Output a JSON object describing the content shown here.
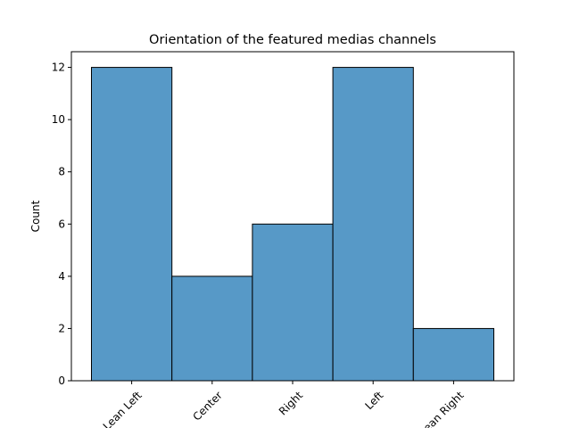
{
  "chart_data": {
    "type": "bar",
    "title": "Orientation of the featured medias channels",
    "xlabel": "",
    "ylabel": "Count",
    "categories": [
      "Lean Left",
      "Center",
      "Right",
      "Left",
      "Lean Right"
    ],
    "values": [
      12,
      4,
      6,
      12,
      2
    ],
    "ylim": [
      0,
      12.6
    ],
    "yticks": [
      0,
      2,
      4,
      6,
      8,
      10,
      12
    ],
    "grid": false,
    "legend": "none",
    "bar_color": "#5799c7",
    "edge_color": "#000000"
  }
}
